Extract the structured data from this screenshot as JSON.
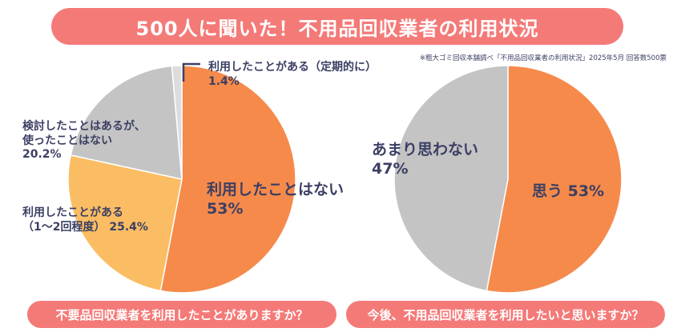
{
  "title": "500人に聞いた！不用品回収業者の利用状況",
  "source_note": "※粗大ゴミ回収本舗調べ「不用品回収業者の利用状況」2025年5月 回答数500票",
  "chart_data": [
    {
      "type": "pie",
      "question": "不要品回収業者を利用したことがありますか？",
      "slices": [
        {
          "label": "利用したことはない",
          "value": 53,
          "value_text": "53%",
          "color": "#f58a4b"
        },
        {
          "label": "利用したことがある\n（1〜2回程度）",
          "value": 25.4,
          "value_text": "25.4%",
          "color": "#fbbd63"
        },
        {
          "label": "検討したことはあるが、\n使ったことはない",
          "value": 20.2,
          "value_text": "20.2%",
          "color": "#c4c4c4"
        },
        {
          "label": "利用したことがある（定期的に）",
          "value": 1.4,
          "value_text": "1.4%",
          "color": "#dcdcdc"
        }
      ]
    },
    {
      "type": "pie",
      "question": "今後、不用品回収業者を利用したいと思いますか？",
      "slices": [
        {
          "label": "思う",
          "value": 53,
          "value_text": "53%",
          "color": "#f58a4b"
        },
        {
          "label": "あまり思わない",
          "value": 47,
          "value_text": "47%",
          "color": "#c4c4c4"
        }
      ]
    }
  ],
  "labels": {
    "c1_no": "利用したことはない",
    "c1_no_pct": "53%",
    "c1_once_1": "利用したことがある",
    "c1_once_2": "（1〜2回程度）",
    "c1_once_pct": "25.4%",
    "c1_consider_1": "検討したことはあるが、",
    "c1_consider_2": "使ったことはない",
    "c1_consider_pct": "20.2%",
    "c1_regular": "利用したことがある（定期的に）",
    "c1_regular_pct": "1.4%",
    "c2_yes": "思う 53%",
    "c2_no": "あまり思わない",
    "c2_no_pct": "47%"
  }
}
